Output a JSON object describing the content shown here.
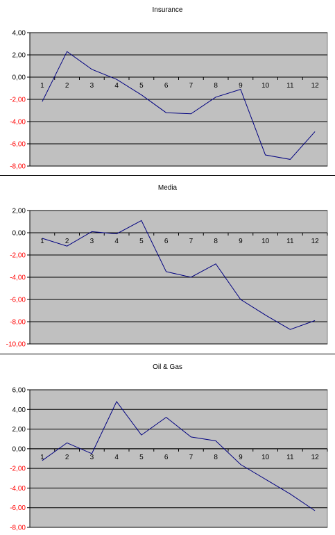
{
  "colors": {
    "plot_area": "#c0c0c0",
    "gridline": "#000000",
    "series_line": "#000080",
    "positive_tick": "#000000",
    "negative_tick": "#ff0000"
  },
  "chart_data": [
    {
      "type": "line",
      "title": "Insurance",
      "xlabel": "",
      "ylabel": "",
      "categories": [
        "1",
        "2",
        "3",
        "4",
        "5",
        "6",
        "7",
        "8",
        "9",
        "10",
        "11",
        "12"
      ],
      "series": [
        {
          "values": [
            -2.2,
            2.3,
            0.7,
            -0.2,
            -1.6,
            -3.2,
            -3.3,
            -1.8,
            -1.1,
            -7.0,
            -7.4,
            -4.9
          ]
        }
      ],
      "y_ticks": [
        "4,00",
        "2,00",
        "0,00",
        "-2,00",
        "-4,00",
        "-6,00",
        "-8,00"
      ],
      "ylim": [
        -8,
        4
      ],
      "grid": true,
      "legend": "none"
    },
    {
      "type": "line",
      "title": "Media",
      "xlabel": "",
      "ylabel": "",
      "categories": [
        "1",
        "2",
        "3",
        "4",
        "5",
        "6",
        "7",
        "8",
        "9",
        "10",
        "11",
        "12"
      ],
      "series": [
        {
          "values": [
            -0.5,
            -1.2,
            0.1,
            -0.1,
            1.1,
            -3.5,
            -4.0,
            -2.8,
            -6.0,
            -7.4,
            -8.7,
            -7.9
          ]
        }
      ],
      "y_ticks": [
        "2,00",
        "0,00",
        "-2,00",
        "-4,00",
        "-6,00",
        "-8,00",
        "-10,00"
      ],
      "ylim": [
        -10,
        2
      ],
      "grid": true,
      "legend": "none"
    },
    {
      "type": "line",
      "title": "Oil & Gas",
      "xlabel": "",
      "ylabel": "",
      "categories": [
        "1",
        "2",
        "3",
        "4",
        "5",
        "6",
        "7",
        "8",
        "9",
        "10",
        "11",
        "12"
      ],
      "series": [
        {
          "values": [
            -1.2,
            0.6,
            -0.5,
            4.8,
            1.4,
            3.2,
            1.2,
            0.8,
            -1.6,
            -3.1,
            -4.6,
            -6.3
          ]
        }
      ],
      "y_ticks": [
        "6,00",
        "4,00",
        "2,00",
        "0,00",
        "-2,00",
        "-4,00",
        "-6,00",
        "-8,00"
      ],
      "ylim": [
        -8,
        6
      ],
      "grid": true,
      "legend": "none"
    }
  ]
}
